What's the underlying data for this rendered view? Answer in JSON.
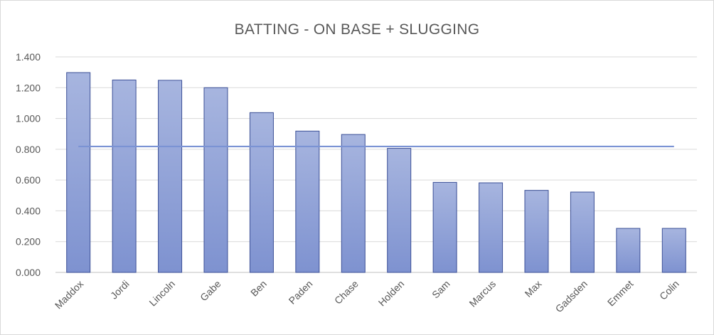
{
  "chart_data": {
    "type": "bar",
    "title": "BATTING - ON BASE + SLUGGING",
    "xlabel": "",
    "ylabel": "",
    "ylim": [
      0,
      1.4
    ],
    "yticks": [
      "0.000",
      "0.200",
      "0.400",
      "0.600",
      "0.800",
      "1.000",
      "1.200",
      "1.400"
    ],
    "grid": true,
    "legend": "none",
    "categories": [
      "Maddox",
      "Jordi",
      "Lincoln",
      "Gabe",
      "Ben",
      "Paden",
      "Chase",
      "Holden",
      "Sam",
      "Marcus",
      "Max",
      "Gadsden",
      "Emmet",
      "Colin"
    ],
    "values": [
      1.298,
      1.25,
      1.248,
      1.2,
      1.038,
      0.918,
      0.896,
      0.806,
      0.585,
      0.582,
      0.533,
      0.522,
      0.286,
      0.286
    ],
    "reference_line": 0.818,
    "colors": {
      "bar_top": "#a7b5df",
      "bar_bottom": "#7e92d0",
      "bar_border": "#3b4f96",
      "line": "#7b93d4",
      "grid": "#d9d9d9",
      "axis": "#bfbfbf"
    }
  }
}
